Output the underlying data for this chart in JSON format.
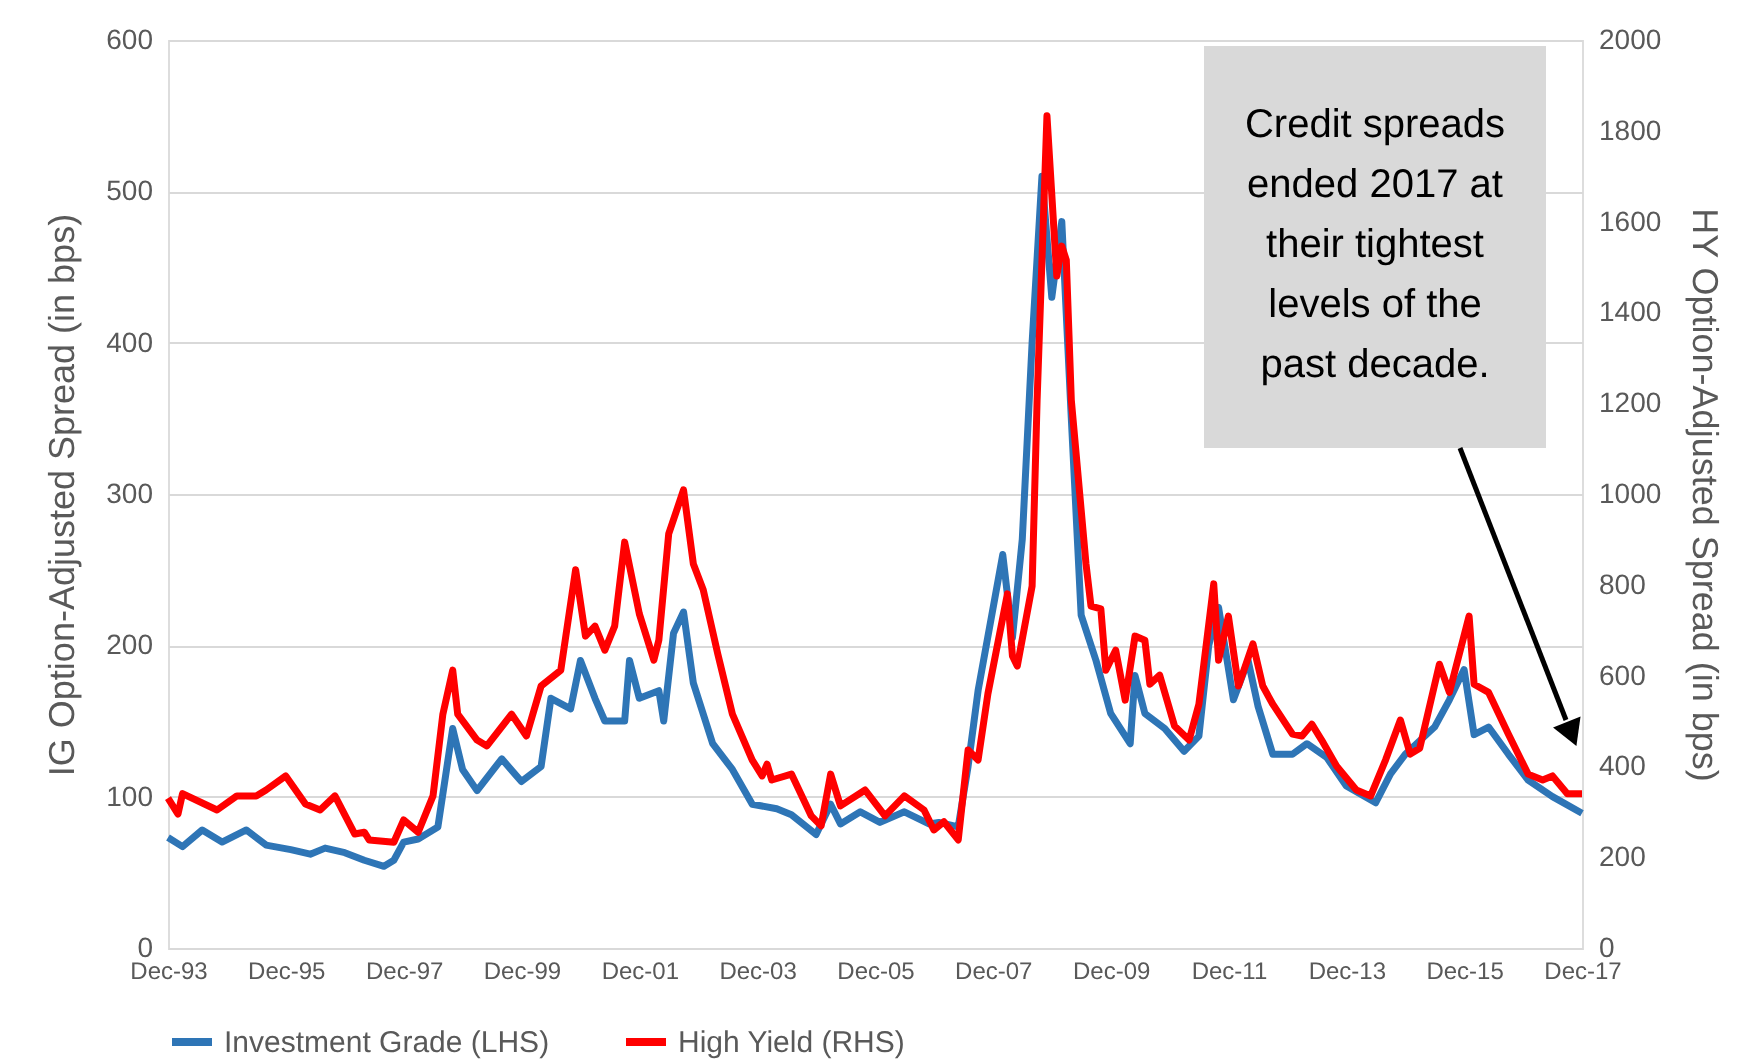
{
  "chart_data": {
    "type": "line",
    "xlim": [
      "1993-12",
      "2017-12"
    ],
    "xticks": [
      {
        "value": "1993-12",
        "label": "Dec-93"
      },
      {
        "value": "1995-12",
        "label": "Dec-95"
      },
      {
        "value": "1997-12",
        "label": "Dec-97"
      },
      {
        "value": "1999-12",
        "label": "Dec-99"
      },
      {
        "value": "2001-12",
        "label": "Dec-01"
      },
      {
        "value": "2003-12",
        "label": "Dec-03"
      },
      {
        "value": "2005-12",
        "label": "Dec-05"
      },
      {
        "value": "2007-12",
        "label": "Dec-07"
      },
      {
        "value": "2009-12",
        "label": "Dec-09"
      },
      {
        "value": "2011-12",
        "label": "Dec-11"
      },
      {
        "value": "2013-12",
        "label": "Dec-13"
      },
      {
        "value": "2015-12",
        "label": "Dec-15"
      },
      {
        "value": "2017-12",
        "label": "Dec-17"
      }
    ],
    "ylabel": "IG Option-Adjusted Spread (in bps)",
    "y2label": "HY Option-Adjusted Spread (in bps)",
    "ylim": [
      0,
      600
    ],
    "yticks": [
      0,
      100,
      200,
      300,
      400,
      500,
      600
    ],
    "y2lim": [
      0,
      2000
    ],
    "y2ticks": [
      0,
      200,
      400,
      600,
      800,
      1000,
      1200,
      1400,
      1600,
      1800,
      2000
    ],
    "grid": "y",
    "legend": "bottom",
    "line_style": "solid",
    "annotations": [
      "Credit spreads ended 2017 at their tightest levels of the past decade."
    ],
    "series": [
      {
        "name": "Investment Grade (LHS)",
        "color": "#2e75b6",
        "x": [
          "1993-12",
          "1994-03",
          "1994-07",
          "1994-11",
          "1995-04",
          "1995-08",
          "1996-01",
          "1996-05",
          "1996-08",
          "1996-12",
          "1997-04",
          "1997-08",
          "1997-10",
          "1997-12",
          "1998-03",
          "1998-07",
          "1998-10",
          "1998-12",
          "1999-03",
          "1999-08",
          "1999-12",
          "2000-04",
          "2000-06",
          "2000-10",
          "2000-12",
          "2001-03",
          "2001-05",
          "2001-09",
          "2001-10",
          "2001-12",
          "2002-04",
          "2002-05",
          "2002-07",
          "2002-09",
          "2002-11",
          "2003-03",
          "2003-07",
          "2003-11",
          "2004-04",
          "2004-07",
          "2004-12",
          "2005-03",
          "2005-05",
          "2005-09",
          "2006-01",
          "2006-06",
          "2006-11",
          "2007-01",
          "2007-05",
          "2007-07",
          "2007-09",
          "2008-02",
          "2008-04",
          "2008-06",
          "2008-08",
          "2008-10",
          "2008-12",
          "2009-02",
          "2009-04",
          "2009-06",
          "2009-09",
          "2009-12",
          "2010-04",
          "2010-05",
          "2010-07",
          "2010-11",
          "2011-03",
          "2011-06",
          "2011-08",
          "2011-10",
          "2012-01",
          "2012-04",
          "2012-06",
          "2012-09",
          "2013-01",
          "2013-04",
          "2013-08",
          "2013-12",
          "2014-06",
          "2014-09",
          "2014-12",
          "2015-06",
          "2015-09",
          "2015-12",
          "2016-02",
          "2016-05",
          "2016-09",
          "2017-01",
          "2017-06",
          "2017-12"
        ],
        "values": [
          73,
          67,
          78,
          70,
          78,
          68,
          65,
          62,
          66,
          63,
          58,
          54,
          58,
          70,
          72,
          80,
          145,
          118,
          104,
          125,
          110,
          120,
          165,
          158,
          190,
          165,
          150,
          150,
          190,
          165,
          170,
          150,
          208,
          222,
          175,
          135,
          118,
          95,
          92,
          88,
          75,
          95,
          82,
          90,
          83,
          90,
          82,
          83,
          80,
          120,
          170,
          260,
          205,
          270,
          400,
          510,
          430,
          480,
          350,
          220,
          190,
          155,
          135,
          180,
          155,
          145,
          130,
          140,
          200,
          225,
          164,
          190,
          160,
          128,
          128,
          135,
          126,
          107,
          96,
          115,
          128,
          146,
          164,
          184,
          141,
          146,
          128,
          111,
          100,
          89
        ]
      },
      {
        "name": "High Yield (RHS)",
        "color": "#ff0000",
        "axis": "y2",
        "x": [
          "1993-12",
          "1994-02",
          "1994-03",
          "1994-10",
          "1995-02",
          "1995-06",
          "1995-08",
          "1995-12",
          "1996-04",
          "1996-07",
          "1996-10",
          "1997-02",
          "1997-04",
          "1997-05",
          "1997-10",
          "1997-12",
          "1998-03",
          "1998-06",
          "1998-08",
          "1998-10",
          "1998-11",
          "1999-03",
          "1999-05",
          "1999-10",
          "2000-01",
          "2000-04",
          "2000-08",
          "2000-11",
          "2001-01",
          "2001-03",
          "2001-05",
          "2001-07",
          "2001-09",
          "2001-12",
          "2002-03",
          "2002-04",
          "2002-06",
          "2002-09",
          "2002-11",
          "2003-01",
          "2003-04",
          "2003-07",
          "2003-11",
          "2004-01",
          "2004-02",
          "2004-03",
          "2004-07",
          "2004-11",
          "2005-01",
          "2005-03",
          "2005-05",
          "2005-10",
          "2006-02",
          "2006-06",
          "2006-10",
          "2006-12",
          "2007-02",
          "2007-05",
          "2007-07",
          "2007-09",
          "2007-11",
          "2008-03",
          "2008-04",
          "2008-05",
          "2008-08",
          "2008-09",
          "2008-11",
          "2009-01",
          "2009-02",
          "2009-03",
          "2009-04",
          "2009-07",
          "2009-08",
          "2009-10",
          "2009-11",
          "2010-01",
          "2010-03",
          "2010-05",
          "2010-07",
          "2010-08",
          "2010-10",
          "2011-01",
          "2011-04",
          "2011-06",
          "2011-09",
          "2011-10",
          "2011-12",
          "2012-02",
          "2012-05",
          "2012-07",
          "2012-09",
          "2013-01",
          "2013-03",
          "2013-05",
          "2013-07",
          "2013-10",
          "2014-02",
          "2014-05",
          "2014-08",
          "2014-11",
          "2015-01",
          "2015-03",
          "2015-07",
          "2015-09",
          "2016-01",
          "2016-02",
          "2016-05",
          "2016-09",
          "2017-01",
          "2017-04",
          "2017-06",
          "2017-09",
          "2017-12"
        ],
        "values": [
          330,
          295,
          340,
          304,
          335,
          335,
          348,
          379,
          317,
          304,
          335,
          251,
          255,
          238,
          233,
          282,
          255,
          335,
          515,
          612,
          515,
          458,
          445,
          515,
          467,
          577,
          612,
          833,
          687,
          709,
          656,
          709,
          894,
          736,
          634,
          678,
          912,
          1009,
          846,
          789,
          648,
          515,
          414,
          379,
          405,
          370,
          383,
          291,
          269,
          383,
          313,
          348,
          291,
          335,
          304,
          260,
          278,
          238,
          436,
          414,
          560,
          780,
          643,
          621,
          797,
          1207,
          1833,
          1480,
          1546,
          1515,
          1207,
          846,
          753,
          747,
          612,
          656,
          546,
          687,
          678,
          581,
          601,
          489,
          458,
          537,
          802,
          634,
          731,
          577,
          670,
          577,
          537,
          471,
          467,
          493,
          458,
          401,
          348,
          335,
          414,
          502,
          427,
          440,
          625,
          563,
          731,
          581,
          563,
          471,
          383,
          370,
          379,
          340,
          340
        ]
      }
    ]
  }
}
